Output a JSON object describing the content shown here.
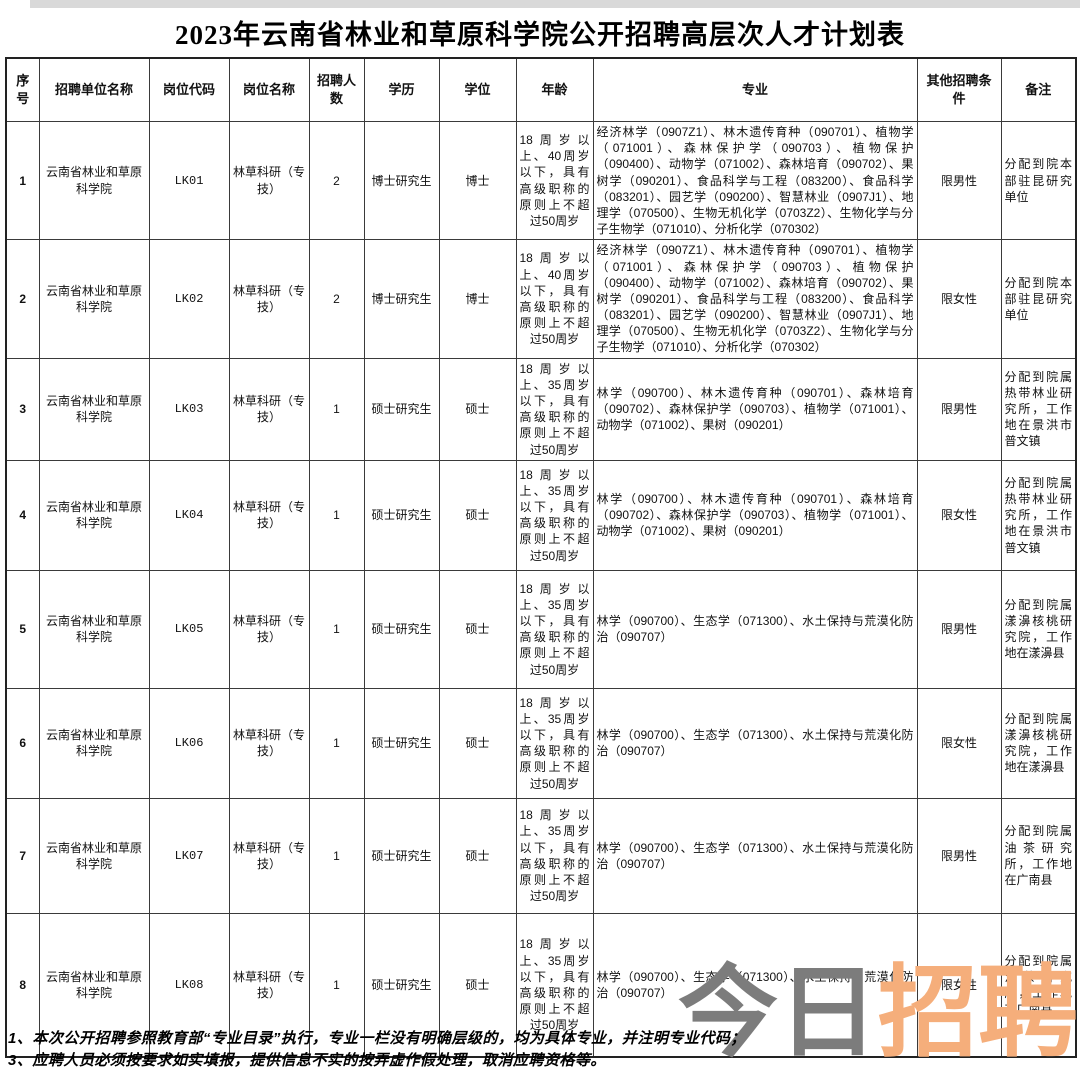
{
  "title": "2023年云南省林业和草原科学院公开招聘高层次人才计划表",
  "table": {
    "headers": [
      "序号",
      "招聘单位名称",
      "岗位代码",
      "岗位名称",
      "招聘人数",
      "学历",
      "学位",
      "年龄",
      "专业",
      "其他招聘条件",
      "备注"
    ],
    "rows": [
      {
        "no": "1",
        "unit": "云南省林业和草原科学院",
        "code": "LK01",
        "post": "林草科研（专技）",
        "count": "2",
        "edu": "博士研究生",
        "degree": "博士",
        "age": "18周岁以上、40周岁以下，具有高级职称的原则上不超过50周岁",
        "majors": "经济林学（0907Z1）、林木遗传育种（090701）、植物学（071001）、森林保护学（090703）、植物保护（090400）、动物学（071002）、森林培育（090702）、果树学（090201）、食品科学与工程（083200）、食品科学（083201）、园艺学（090200）、智慧林业（0907J1）、地理学（070500）、生物无机化学（0703Z2）、生物化学与分子生物学（071010）、分析化学（070302）",
        "other": "限男性",
        "remark": "分配到院本部驻昆研究单位"
      },
      {
        "no": "2",
        "unit": "云南省林业和草原科学院",
        "code": "LK02",
        "post": "林草科研（专技）",
        "count": "2",
        "edu": "博士研究生",
        "degree": "博士",
        "age": "18周岁以上、40周岁以下，具有高级职称的原则上不超过50周岁",
        "majors": "经济林学（0907Z1）、林木遗传育种（090701）、植物学（071001）、森林保护学（090703）、植物保护（090400）、动物学（071002）、森林培育（090702）、果树学（090201）、食品科学与工程（083200）、食品科学（083201）、园艺学（090200）、智慧林业（0907J1）、地理学（070500）、生物无机化学（0703Z2）、生物化学与分子生物学（071010）、分析化学（070302）",
        "other": "限女性",
        "remark": "分配到院本部驻昆研究单位"
      },
      {
        "no": "3",
        "unit": "云南省林业和草原科学院",
        "code": "LK03",
        "post": "林草科研（专技）",
        "count": "1",
        "edu": "硕士研究生",
        "degree": "硕士",
        "age": "18周岁以上、35周岁以下，具有高级职称的原则上不超过50周岁",
        "majors": "林学（090700）、林木遗传育种（090701）、森林培育（090702）、森林保护学（090703）、植物学（071001）、动物学（071002）、果树（090201）",
        "other": "限男性",
        "remark": "分配到院属热带林业研究所，工作地在景洪市普文镇"
      },
      {
        "no": "4",
        "unit": "云南省林业和草原科学院",
        "code": "LK04",
        "post": "林草科研（专技）",
        "count": "1",
        "edu": "硕士研究生",
        "degree": "硕士",
        "age": "18周岁以上、35周岁以下，具有高级职称的原则上不超过50周岁",
        "majors": "林学（090700）、林木遗传育种（090701）、森林培育（090702）、森林保护学（090703）、植物学（071001）、动物学（071002）、果树（090201）",
        "other": "限女性",
        "remark": "分配到院属热带林业研究所，工作地在景洪市普文镇"
      },
      {
        "no": "5",
        "unit": "云南省林业和草原科学院",
        "code": "LK05",
        "post": "林草科研（专技）",
        "count": "1",
        "edu": "硕士研究生",
        "degree": "硕士",
        "age": "18周岁以上、35周岁以下，具有高级职称的原则上不超过50周岁",
        "majors": "林学（090700）、生态学（071300）、水土保持与荒漠化防治（090707）",
        "other": "限男性",
        "remark": "分配到院属漾濞核桃研究院，工作地在漾濞县"
      },
      {
        "no": "6",
        "unit": "云南省林业和草原科学院",
        "code": "LK06",
        "post": "林草科研（专技）",
        "count": "1",
        "edu": "硕士研究生",
        "degree": "硕士",
        "age": "18周岁以上、35周岁以下，具有高级职称的原则上不超过50周岁",
        "majors": "林学（090700）、生态学（071300）、水土保持与荒漠化防治（090707）",
        "other": "限女性",
        "remark": "分配到院属漾濞核桃研究院，工作地在漾濞县"
      },
      {
        "no": "7",
        "unit": "云南省林业和草原科学院",
        "code": "LK07",
        "post": "林草科研（专技）",
        "count": "1",
        "edu": "硕士研究生",
        "degree": "硕士",
        "age": "18周岁以上、35周岁以下，具有高级职称的原则上不超过50周岁",
        "majors": "林学（090700）、生态学（071300）、水土保持与荒漠化防治（090707）",
        "other": "限男性",
        "remark": "分配到院属油茶研究所，工作地在广南县"
      },
      {
        "no": "8",
        "unit": "云南省林业和草原科学院",
        "code": "LK08",
        "post": "林草科研（专技）",
        "count": "1",
        "edu": "硕士研究生",
        "degree": "硕士",
        "age": "18周岁以上、35周岁以下，具有高级职称的原则上不超过50周岁",
        "majors": "林学（090700）、生态学（071300）、水土保持与荒漠化防治（090707）",
        "other": "限女性",
        "remark": "分配到院属油茶研究所，工作地在广南县"
      }
    ]
  },
  "notes": [
    "1、本次公开招聘参照教育部“专业目录”执行，专业一栏没有明确层级的，均为具体专业，并注明专业代码；",
    "3、应聘人员必须按要求如实填报，提供信息不实的按弄虚作假处理，取消应聘资格等。"
  ],
  "watermark": {
    "gray_text": "今日",
    "orange_text": "招聘",
    "gray_color": "#7c7c7c",
    "orange_color": "#f5ae7b"
  }
}
